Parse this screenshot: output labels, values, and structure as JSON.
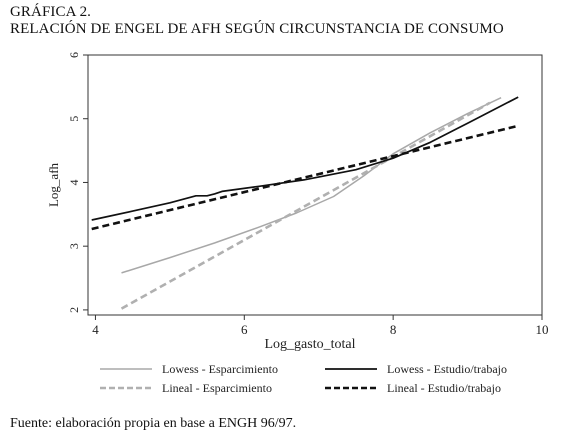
{
  "heading": {
    "line1": "GRÁFICA 2.",
    "line2": "RELACIÓN DE ENGEL DE AFH SEGÚN CIRCUNSTANCIA DE CONSUMO"
  },
  "source_note": "Fuente: elaboración propia en base a ENGH 96/97.",
  "chart_data": {
    "type": "line",
    "xlabel": "Log_gasto_total",
    "ylabel": "Log_afh",
    "xlim": [
      3.9,
      10
    ],
    "ylim": [
      1.92,
      6
    ],
    "x_ticks": [
      4,
      6,
      8,
      10
    ],
    "y_ticks": [
      2,
      3,
      4,
      5,
      6
    ],
    "grid": false,
    "legend_position": "bottom",
    "series": [
      {
        "name": "Lowess - Esparcimiento",
        "color": "#a8a8a8",
        "style": "solid",
        "points": [
          [
            4.35,
            2.58
          ],
          [
            5.0,
            2.82
          ],
          [
            5.6,
            3.05
          ],
          [
            6.2,
            3.3
          ],
          [
            6.7,
            3.52
          ],
          [
            7.2,
            3.78
          ],
          [
            7.6,
            4.1
          ],
          [
            8.0,
            4.45
          ],
          [
            8.5,
            4.78
          ],
          [
            9.0,
            5.08
          ],
          [
            9.45,
            5.33
          ]
        ]
      },
      {
        "name": "Lineal - Esparcimiento",
        "color": "#b0b0b0",
        "style": "dashed",
        "points": [
          [
            4.35,
            2.02
          ],
          [
            9.3,
            5.25
          ]
        ]
      },
      {
        "name": "Lowess - Estudio/trabajo",
        "color": "#111111",
        "style": "solid",
        "points": [
          [
            3.95,
            3.41
          ],
          [
            4.5,
            3.55
          ],
          [
            5.0,
            3.68
          ],
          [
            5.35,
            3.79
          ],
          [
            5.5,
            3.79
          ],
          [
            5.6,
            3.82
          ],
          [
            5.7,
            3.86
          ],
          [
            6.2,
            3.94
          ],
          [
            6.8,
            4.04
          ],
          [
            7.5,
            4.2
          ],
          [
            8.0,
            4.38
          ],
          [
            8.5,
            4.63
          ],
          [
            9.0,
            4.93
          ],
          [
            9.68,
            5.34
          ]
        ]
      },
      {
        "name": "Lineal - Estudio/trabajo",
        "color": "#111111",
        "style": "dashed",
        "points": [
          [
            3.95,
            3.27
          ],
          [
            9.65,
            4.88
          ]
        ]
      }
    ]
  }
}
